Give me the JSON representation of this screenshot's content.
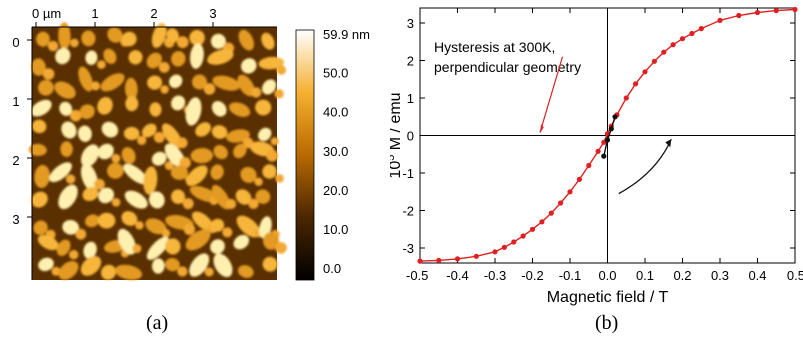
{
  "captions": {
    "a": "(a)",
    "b": "(b)"
  },
  "afm": {
    "x_ticks": [
      "0 µm",
      "1",
      "2",
      "3"
    ],
    "y_ticks": [
      "0",
      "1",
      "2",
      "3"
    ],
    "colorbar_labels": [
      "59.9 nm",
      "50.0",
      "40.0",
      "30.0",
      "20.0",
      "10.0",
      "0.0"
    ],
    "colorbar_values": [
      59.9,
      50.0,
      40.0,
      30.0,
      20.0,
      10.0,
      0.0
    ],
    "colors": {
      "low": "#000000",
      "mid": "#c87800",
      "high": "#ffffff"
    }
  },
  "chart_data": {
    "type": "line",
    "xlabel": "Magnetic field / T",
    "ylabel_prefix": "10",
    "ylabel_exp": "5",
    "ylabel_suffix": " M / emu",
    "xlim": [
      -0.5,
      0.5
    ],
    "ylim": [
      -3.4,
      3.4
    ],
    "x_ticks": [
      -0.5,
      -0.4,
      -0.3,
      -0.2,
      -0.1,
      0.0,
      0.1,
      0.2,
      0.3,
      0.4,
      0.5
    ],
    "x_tick_labels": [
      "-0.5",
      "-0.4",
      "-0.3",
      "-0.2",
      "-0.1",
      "0.0",
      "0.1",
      "0.2",
      "0.3",
      "0.4",
      "0.5"
    ],
    "y_ticks": [
      -3,
      -2,
      -1,
      0,
      1,
      2,
      3
    ],
    "y_tick_labels": [
      "-3",
      "-2",
      "-1",
      "0",
      "1",
      "2",
      "3"
    ],
    "annotation": [
      "Hysteresis at 300K,",
      "perpendicular geometry"
    ],
    "series": [
      {
        "color": "#e02020",
        "x": [
          -0.5,
          -0.45,
          -0.4,
          -0.35,
          -0.3,
          -0.275,
          -0.25,
          -0.225,
          -0.2,
          -0.175,
          -0.15,
          -0.125,
          -0.1,
          -0.075,
          -0.05,
          -0.025,
          -0.01,
          0.0,
          0.01,
          0.025,
          0.05,
          0.075,
          0.1,
          0.125,
          0.15,
          0.175,
          0.2,
          0.225,
          0.25,
          0.3,
          0.35,
          0.4,
          0.45,
          0.5
        ],
        "y": [
          -3.35,
          -3.33,
          -3.29,
          -3.22,
          -3.1,
          -2.98,
          -2.84,
          -2.68,
          -2.5,
          -2.3,
          -2.07,
          -1.8,
          -1.5,
          -1.17,
          -0.8,
          -0.42,
          -0.18,
          0.05,
          0.25,
          0.55,
          1.0,
          1.38,
          1.7,
          1.98,
          2.22,
          2.42,
          2.58,
          2.72,
          2.85,
          3.07,
          3.2,
          3.28,
          3.33,
          3.36
        ]
      },
      {
        "color": "#111111",
        "x": [
          -0.01,
          0.0,
          0.01,
          0.02
        ],
        "y": [
          -0.55,
          -0.12,
          0.18,
          0.5
        ]
      }
    ]
  }
}
